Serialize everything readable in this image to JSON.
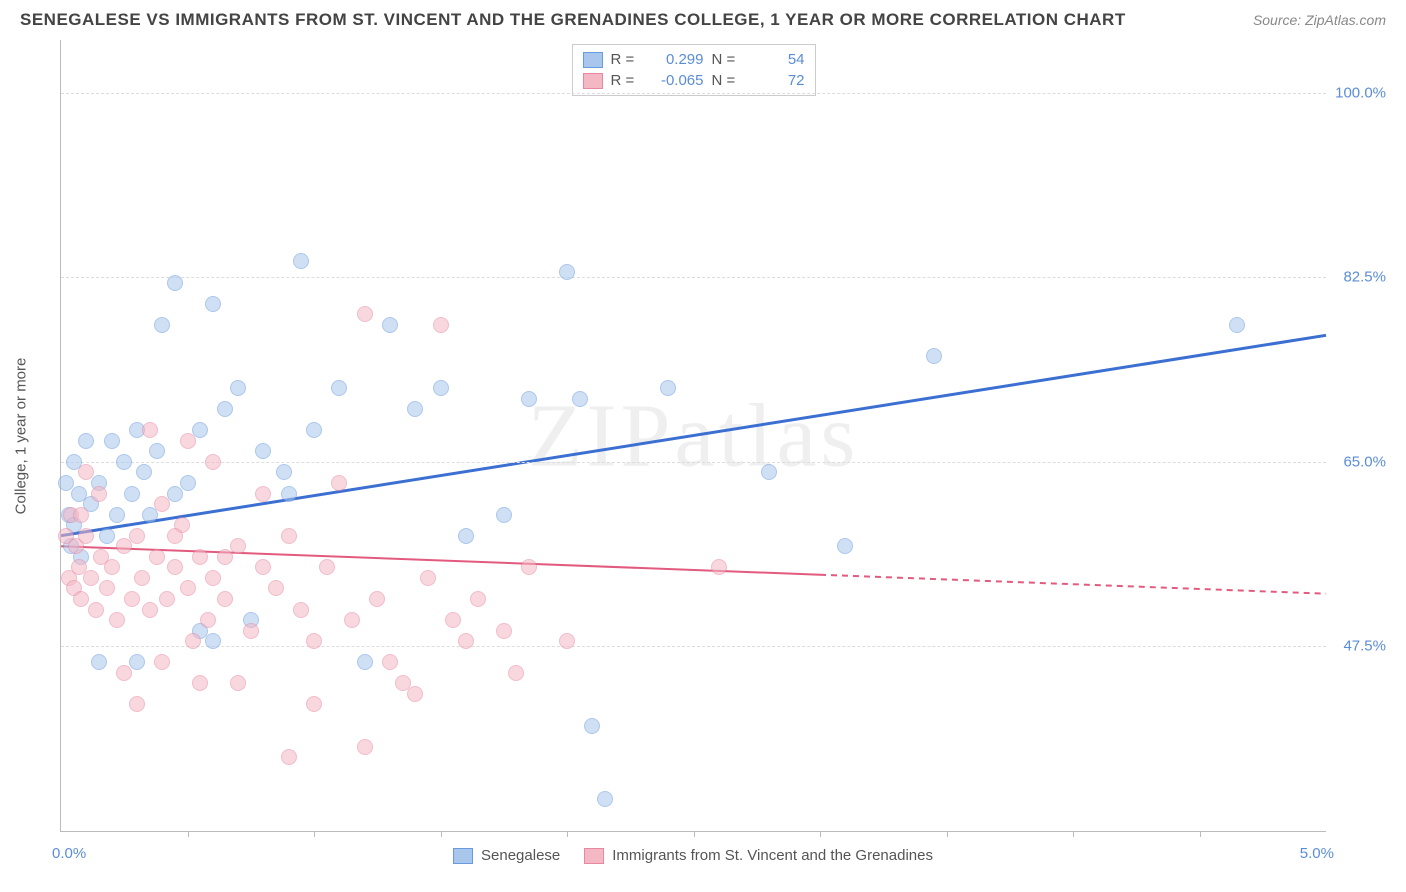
{
  "title": "SENEGALESE VS IMMIGRANTS FROM ST. VINCENT AND THE GRENADINES COLLEGE, 1 YEAR OR MORE CORRELATION CHART",
  "source": "Source: ZipAtlas.com",
  "watermark": "ZIPatlas",
  "y_axis_title": "College, 1 year or more",
  "chart": {
    "type": "scatter",
    "xlim": [
      0.0,
      5.0
    ],
    "ylim": [
      30.0,
      105.0
    ],
    "x_ticks_label": {
      "left": "0.0%",
      "right": "5.0%"
    },
    "x_tick_positions": [
      0.5,
      1.0,
      1.5,
      2.0,
      2.5,
      3.0,
      3.5,
      4.0,
      4.5
    ],
    "y_gridlines": [
      47.5,
      65.0,
      82.5,
      100.0
    ],
    "y_grid_labels": [
      "47.5%",
      "65.0%",
      "82.5%",
      "100.0%"
    ],
    "background_color": "#ffffff",
    "grid_color": "#dddddd",
    "axis_color": "#bbbbbb",
    "label_color": "#5b8dd6",
    "marker_radius": 8,
    "marker_opacity": 0.55
  },
  "series": [
    {
      "name": "Senegalese",
      "fill": "#a9c6ec",
      "stroke": "#6a9bde",
      "trend": {
        "x1": 0.0,
        "y1": 58.0,
        "x2": 5.0,
        "y2": 77.0,
        "color": "#3b6fd1",
        "width": 3,
        "dashed_from": null
      },
      "R": "0.299",
      "N": "54",
      "points": [
        [
          0.02,
          63
        ],
        [
          0.03,
          60
        ],
        [
          0.04,
          57
        ],
        [
          0.05,
          65
        ],
        [
          0.05,
          59
        ],
        [
          0.07,
          62
        ],
        [
          0.08,
          56
        ],
        [
          0.1,
          67
        ],
        [
          0.12,
          61
        ],
        [
          0.15,
          63
        ],
        [
          0.18,
          58
        ],
        [
          0.2,
          67
        ],
        [
          0.22,
          60
        ],
        [
          0.25,
          65
        ],
        [
          0.28,
          62
        ],
        [
          0.3,
          68
        ],
        [
          0.33,
          64
        ],
        [
          0.35,
          60
        ],
        [
          0.38,
          66
        ],
        [
          0.4,
          78
        ],
        [
          0.45,
          82
        ],
        [
          0.5,
          63
        ],
        [
          0.55,
          68
        ],
        [
          0.6,
          48
        ],
        [
          0.65,
          70
        ],
        [
          0.7,
          72
        ],
        [
          0.75,
          50
        ],
        [
          0.8,
          66
        ],
        [
          0.9,
          62
        ],
        [
          0.95,
          84
        ],
        [
          1.0,
          68
        ],
        [
          1.1,
          72
        ],
        [
          1.2,
          46
        ],
        [
          1.3,
          78
        ],
        [
          1.4,
          70
        ],
        [
          1.5,
          72
        ],
        [
          1.6,
          58
        ],
        [
          1.75,
          60
        ],
        [
          1.85,
          71
        ],
        [
          2.0,
          83
        ],
        [
          2.05,
          71
        ],
        [
          2.1,
          40
        ],
        [
          2.15,
          33
        ],
        [
          2.4,
          72
        ],
        [
          2.8,
          64
        ],
        [
          3.1,
          57
        ],
        [
          3.45,
          75
        ],
        [
          4.65,
          78
        ],
        [
          0.55,
          49
        ],
        [
          0.3,
          46
        ],
        [
          0.45,
          62
        ],
        [
          0.88,
          64
        ],
        [
          0.6,
          80
        ],
        [
          0.15,
          46
        ]
      ]
    },
    {
      "name": "Immigrants from St. Vincent and the Grenadines",
      "fill": "#f4b7c4",
      "stroke": "#e788a0",
      "trend": {
        "x1": 0.0,
        "y1": 57.0,
        "x2": 5.0,
        "y2": 52.5,
        "color": "#e25a7e",
        "width": 2,
        "dashed_from": 3.0
      },
      "R": "-0.065",
      "N": "72",
      "points": [
        [
          0.02,
          58
        ],
        [
          0.03,
          54
        ],
        [
          0.04,
          60
        ],
        [
          0.05,
          53
        ],
        [
          0.06,
          57
        ],
        [
          0.07,
          55
        ],
        [
          0.08,
          52
        ],
        [
          0.1,
          58
        ],
        [
          0.12,
          54
        ],
        [
          0.14,
          51
        ],
        [
          0.16,
          56
        ],
        [
          0.18,
          53
        ],
        [
          0.2,
          55
        ],
        [
          0.22,
          50
        ],
        [
          0.25,
          57
        ],
        [
          0.28,
          52
        ],
        [
          0.3,
          58
        ],
        [
          0.32,
          54
        ],
        [
          0.35,
          51
        ],
        [
          0.38,
          56
        ],
        [
          0.4,
          61
        ],
        [
          0.42,
          52
        ],
        [
          0.45,
          55
        ],
        [
          0.48,
          59
        ],
        [
          0.5,
          53
        ],
        [
          0.52,
          48
        ],
        [
          0.55,
          56
        ],
        [
          0.58,
          50
        ],
        [
          0.6,
          54
        ],
        [
          0.65,
          52
        ],
        [
          0.7,
          57
        ],
        [
          0.75,
          49
        ],
        [
          0.8,
          55
        ],
        [
          0.85,
          53
        ],
        [
          0.9,
          58
        ],
        [
          0.95,
          51
        ],
        [
          1.0,
          48
        ],
        [
          1.05,
          55
        ],
        [
          1.1,
          63
        ],
        [
          1.15,
          50
        ],
        [
          1.2,
          79
        ],
        [
          1.25,
          52
        ],
        [
          1.3,
          46
        ],
        [
          1.35,
          44
        ],
        [
          1.4,
          43
        ],
        [
          1.45,
          54
        ],
        [
          1.5,
          78
        ],
        [
          1.55,
          50
        ],
        [
          1.6,
          48
        ],
        [
          1.65,
          52
        ],
        [
          1.75,
          49
        ],
        [
          1.8,
          45
        ],
        [
          1.85,
          55
        ],
        [
          2.0,
          48
        ],
        [
          2.6,
          55
        ],
        [
          0.35,
          68
        ],
        [
          0.5,
          67
        ],
        [
          0.25,
          45
        ],
        [
          0.6,
          65
        ],
        [
          0.3,
          42
        ],
        [
          0.4,
          46
        ],
        [
          0.7,
          44
        ],
        [
          0.55,
          44
        ],
        [
          0.9,
          37
        ],
        [
          1.0,
          42
        ],
        [
          1.2,
          38
        ],
        [
          0.8,
          62
        ],
        [
          0.15,
          62
        ],
        [
          0.1,
          64
        ],
        [
          0.08,
          60
        ],
        [
          0.45,
          58
        ],
        [
          0.65,
          56
        ]
      ]
    }
  ],
  "legend_top_labels": {
    "R": "R =",
    "N": "N ="
  },
  "legend_bottom": [
    "Senegalese",
    "Immigrants from St. Vincent and the Grenadines"
  ]
}
